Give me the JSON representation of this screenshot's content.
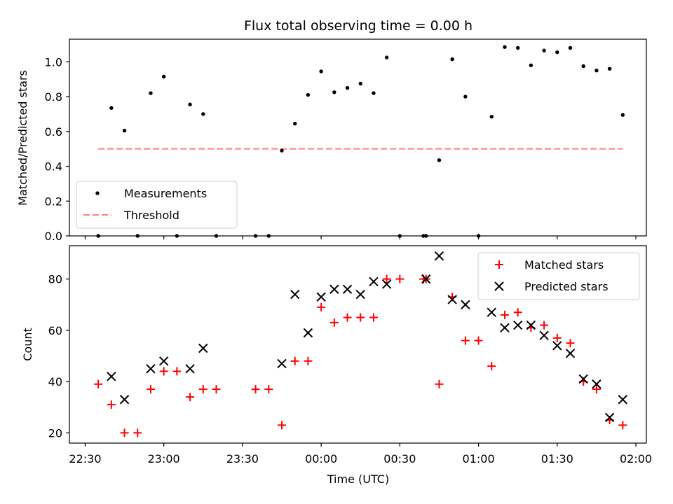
{
  "chart_data": [
    {
      "type": "scatter",
      "title": "Flux total observing time = 0.00 h",
      "xlabel": "",
      "ylabel": "Matched/Predicted stars",
      "ylim": [
        0,
        1.13
      ],
      "yticks": [
        0.0,
        0.2,
        0.4,
        0.6,
        0.8,
        1.0
      ],
      "ytick_labels": [
        "0.0",
        "0.2",
        "0.4",
        "0.6",
        "0.8",
        "1.0"
      ],
      "legend": [
        "Measurements",
        "Threshold"
      ],
      "legend_placement": "lower-left",
      "series": [
        {
          "name": "Measurements",
          "color": "#000000",
          "marker": "dot",
          "x": [
            "22:35",
            "22:40",
            "22:45",
            "22:50",
            "22:55",
            "23:00",
            "23:05",
            "23:10",
            "23:15",
            "23:20",
            "23:35",
            "23:40",
            "23:45",
            "23:50",
            "23:55",
            "00:00",
            "00:05",
            "00:10",
            "00:15",
            "00:20",
            "00:25",
            "00:30",
            "00:39",
            "00:40",
            "00:45",
            "00:50",
            "00:55",
            "01:00",
            "01:05",
            "01:10",
            "01:15",
            "01:20",
            "01:25",
            "01:30",
            "01:35",
            "01:40",
            "01:45",
            "01:50",
            "01:55"
          ],
          "y": [
            0.0,
            0.735,
            0.605,
            0.0,
            0.82,
            0.915,
            0.0,
            0.755,
            0.7,
            0.0,
            0.0,
            0.0,
            0.49,
            0.645,
            0.81,
            0.945,
            0.825,
            0.85,
            0.875,
            0.82,
            1.025,
            0.0,
            0.0,
            0.0,
            0.435,
            1.015,
            0.8,
            0.0,
            0.685,
            1.085,
            1.08,
            0.98,
            1.065,
            1.055,
            1.08,
            0.975,
            0.95,
            0.96,
            0.695
          ]
        },
        {
          "name": "Threshold",
          "color": "#ff7f7f",
          "style": "dashed",
          "x": [
            "22:35",
            "01:55"
          ],
          "y": [
            0.5,
            0.5
          ]
        }
      ]
    },
    {
      "type": "scatter",
      "title": "",
      "xlabel": "Time (UTC)",
      "ylabel": "Count",
      "ylim": [
        16,
        93
      ],
      "yticks": [
        20,
        40,
        60,
        80
      ],
      "ytick_labels": [
        "20",
        "40",
        "60",
        "80"
      ],
      "xlim": [
        "22:24",
        "02:04"
      ],
      "xticks": [
        "22:30",
        "23:00",
        "23:30",
        "00:00",
        "00:30",
        "01:00",
        "01:30",
        "02:00"
      ],
      "legend": [
        "Matched stars",
        "Predicted stars"
      ],
      "legend_placement": "top-right",
      "series": [
        {
          "name": "Matched stars",
          "color": "#ff0000",
          "marker": "plus",
          "x": [
            "22:35",
            "22:40",
            "22:45",
            "22:50",
            "22:55",
            "23:00",
            "23:05",
            "23:10",
            "23:15",
            "23:20",
            "23:35",
            "23:40",
            "23:45",
            "23:50",
            "23:55",
            "00:00",
            "00:05",
            "00:10",
            "00:15",
            "00:20",
            "00:25",
            "00:30",
            "00:39",
            "00:40",
            "00:45",
            "00:50",
            "00:55",
            "01:00",
            "01:05",
            "01:10",
            "01:15",
            "01:20",
            "01:25",
            "01:30",
            "01:35",
            "01:40",
            "01:45",
            "01:50",
            "01:55"
          ],
          "y": [
            39,
            31,
            20,
            20,
            37,
            44,
            44,
            34,
            37,
            37,
            37,
            37,
            23,
            48,
            48,
            69,
            63,
            65,
            65,
            65,
            80,
            80,
            80,
            80,
            39,
            73,
            56,
            56,
            46,
            66,
            67,
            61,
            62,
            57,
            55,
            40,
            37,
            25,
            23
          ]
        },
        {
          "name": "Predicted stars",
          "color": "#000000",
          "marker": "x",
          "x": [
            "22:40",
            "22:45",
            "22:55",
            "23:00",
            "23:10",
            "23:15",
            "23:45",
            "23:50",
            "23:55",
            "00:00",
            "00:05",
            "00:10",
            "00:15",
            "00:20",
            "00:25",
            "00:40",
            "00:45",
            "00:50",
            "00:55",
            "01:05",
            "01:10",
            "01:15",
            "01:20",
            "01:25",
            "01:30",
            "01:35",
            "01:40",
            "01:45",
            "01:50",
            "01:55"
          ],
          "y": [
            42,
            33,
            45,
            48,
            45,
            53,
            47,
            74,
            59,
            73,
            76,
            76,
            74,
            79,
            78,
            80,
            89,
            72,
            70,
            67,
            61,
            62,
            62,
            58,
            54,
            51,
            41,
            39,
            26,
            33
          ]
        }
      ]
    }
  ]
}
